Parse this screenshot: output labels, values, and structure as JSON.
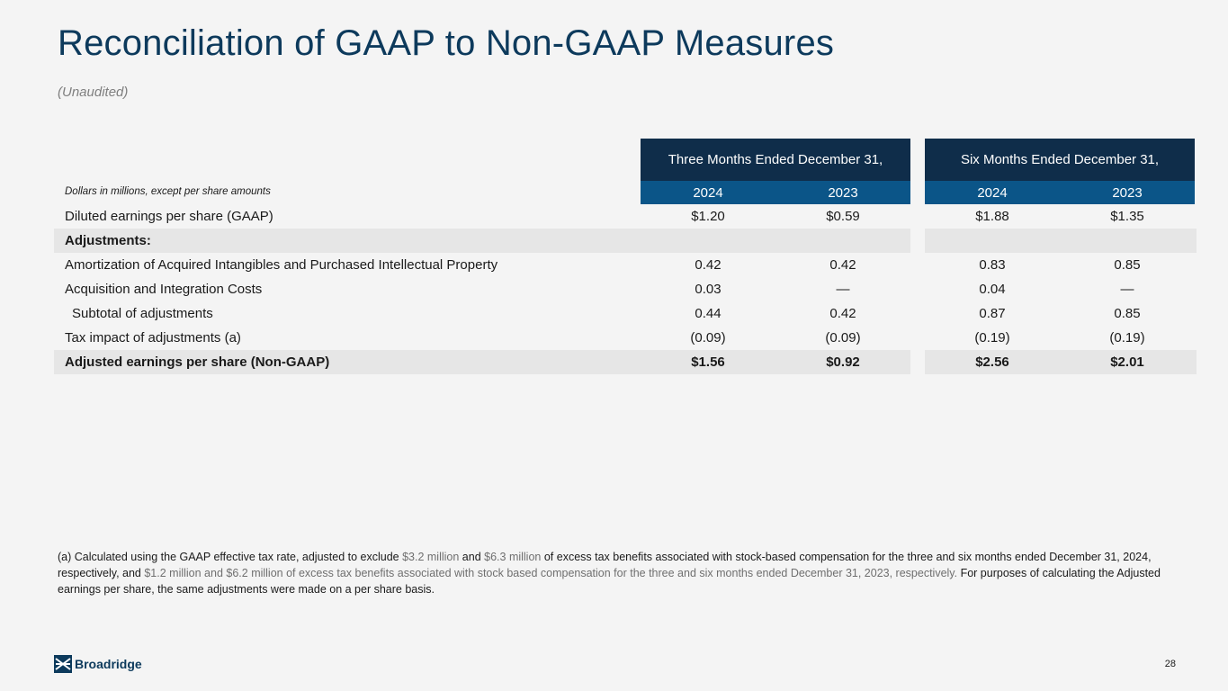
{
  "title": "Reconciliation of GAAP to Non-GAAP Measures",
  "subtitle": "(Unaudited)",
  "table": {
    "group_headers": [
      "Three Months Ended December 31,",
      "Six Months Ended December 31,"
    ],
    "units_note": "Dollars in millions, except per share amounts",
    "years": [
      "2024",
      "2023",
      "2024",
      "2023"
    ],
    "rows": [
      {
        "label": "Diluted earnings per share (GAAP)",
        "values": [
          "$1.20",
          "$0.59",
          "$1.88",
          "$1.35"
        ]
      },
      {
        "label": "Adjustments:",
        "values": [
          "",
          "",
          "",
          ""
        ]
      },
      {
        "label": "Amortization of Acquired Intangibles and Purchased Intellectual Property",
        "values": [
          "0.42",
          "0.42",
          "0.83",
          "0.85"
        ]
      },
      {
        "label": "Acquisition and Integration Costs",
        "values": [
          "0.03",
          "—",
          "0.04",
          "—"
        ]
      },
      {
        "label": "Subtotal of adjustments",
        "values": [
          "0.44",
          "0.42",
          "0.87",
          "0.85"
        ]
      },
      {
        "label": "Tax impact of adjustments (a)",
        "values": [
          "(0.09)",
          "(0.09)",
          "(0.19)",
          "(0.19)"
        ]
      },
      {
        "label": "Adjusted earnings per share (Non-GAAP)",
        "values": [
          "$1.56",
          "$0.92",
          "$2.56",
          "$2.01"
        ]
      }
    ]
  },
  "footnote": {
    "p1": "(a) Calculated using the GAAP effective tax rate, adjusted to exclude ",
    "v1": "$3.2 million",
    "p2": " and ",
    "v2": "$6.3 million",
    "p3": " of excess tax benefits associated with stock-based compensation for the three and six months ended December 31, 2024, respectively, and ",
    "grey": "$1.2 million and $6.2 million of excess tax benefits associated with stock based compensation for the three and six months ended December 31, 2023, respectively.",
    "p4": "  For purposes of calculating the Adjusted earnings per share, the same adjustments were made on a per share basis."
  },
  "logo_text": "Broadridge",
  "page_number": "28",
  "colors": {
    "title": "#0d3a5c",
    "header_dark": "#0f2d4a",
    "header_year": "#0b5588",
    "shade": "#e6e6e6"
  }
}
